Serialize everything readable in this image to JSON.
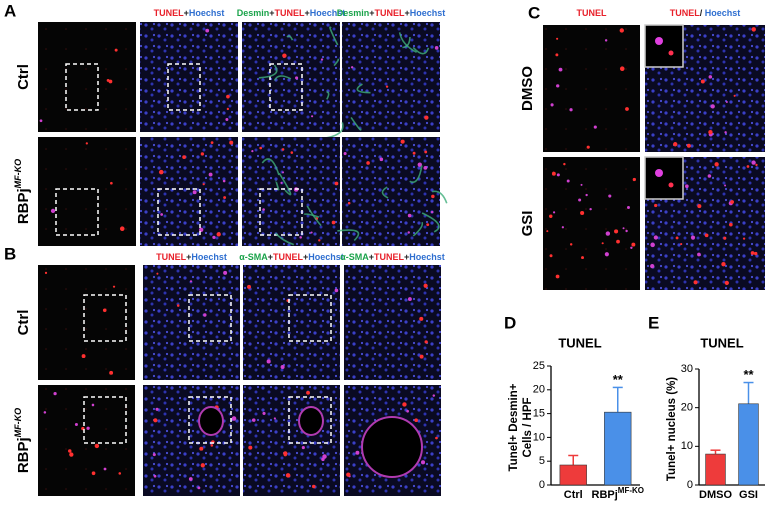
{
  "panel_labels": [
    "A",
    "B",
    "C",
    "D",
    "E"
  ],
  "panel_a": {
    "headers": [
      [
        {
          "text": "TUNEL",
          "color": "#e8202a"
        },
        {
          "text": "+",
          "color": "#222222"
        },
        {
          "text": "Hoechst",
          "color": "#2f6fd0"
        }
      ],
      [
        {
          "text": "Desmin",
          "color": "#1aa34a"
        },
        {
          "text": "+",
          "color": "#222222"
        },
        {
          "text": "TUNEL",
          "color": "#e8202a"
        },
        {
          "text": "+",
          "color": "#222222"
        },
        {
          "text": "Hoechst",
          "color": "#2f6fd0"
        }
      ],
      [
        {
          "text": "Desmin",
          "color": "#1aa34a"
        },
        {
          "text": "+",
          "color": "#222222"
        },
        {
          "text": "TUNEL",
          "color": "#e8202a"
        },
        {
          "text": "+",
          "color": "#222222"
        },
        {
          "text": "Hoechst",
          "color": "#2f6fd0"
        }
      ]
    ],
    "rows": [
      {
        "text": "Ctrl"
      },
      {
        "text": "RBPj",
        "sup": "MF-KO"
      }
    ]
  },
  "panel_b": {
    "headers": [
      [
        {
          "text": "TUNEL",
          "color": "#e8202a"
        },
        {
          "text": "+",
          "color": "#222222"
        },
        {
          "text": "Hoechst",
          "color": "#2f6fd0"
        }
      ],
      [
        {
          "text": "α-SMA",
          "color": "#1aa34a"
        },
        {
          "text": "+",
          "color": "#222222"
        },
        {
          "text": "TUNEL",
          "color": "#e8202a"
        },
        {
          "text": "+",
          "color": "#222222"
        },
        {
          "text": "Hoechst",
          "color": "#2f6fd0"
        }
      ],
      [
        {
          "text": "α-SMA",
          "color": "#1aa34a"
        },
        {
          "text": "+",
          "color": "#222222"
        },
        {
          "text": "TUNEL",
          "color": "#e8202a"
        },
        {
          "text": "+",
          "color": "#222222"
        },
        {
          "text": "Hoechst",
          "color": "#2f6fd0"
        }
      ]
    ],
    "rows": [
      {
        "text": "Ctrl"
      },
      {
        "text": "RBPj",
        "sup": "MF-KO"
      }
    ]
  },
  "panel_c": {
    "headers": [
      [
        {
          "text": "TUNEL",
          "color": "#e8202a"
        }
      ],
      [
        {
          "text": "TUNEL",
          "color": "#e8202a"
        },
        {
          "text": "/ ",
          "color": "#222222"
        },
        {
          "text": "Hoechst",
          "color": "#2f6fd0"
        }
      ]
    ],
    "rows": [
      {
        "text": "DMSO"
      },
      {
        "text": "GSI"
      }
    ]
  },
  "chart_data": [
    {
      "type": "bar",
      "title": "TUNEL",
      "y_label": [
        "Tunel+ Desmin+",
        "Cells / HPF"
      ],
      "categories": [
        {
          "text": "Ctrl"
        },
        {
          "text": "RBPj",
          "sup": "MF-KO"
        }
      ],
      "values": [
        4.2,
        15.3
      ],
      "errors": [
        2.0,
        5.2
      ],
      "colors": [
        "#ee3b3b",
        "#4a90e8"
      ],
      "significance": [
        null,
        "**"
      ],
      "ylim": [
        0,
        25
      ],
      "yticks": [
        0,
        5,
        10,
        15,
        20,
        25
      ]
    },
    {
      "type": "bar",
      "title": "TUNEL",
      "y_label": [
        "Tunel+ nucleus (%)"
      ],
      "categories": [
        {
          "text": "DMSO"
        },
        {
          "text": "GSI"
        }
      ],
      "values": [
        8,
        21
      ],
      "errors": [
        1,
        5.5
      ],
      "colors": [
        "#ee3b3b",
        "#4a90e8"
      ],
      "significance": [
        null,
        "**"
      ],
      "ylim": [
        0,
        30
      ],
      "yticks": [
        0,
        10,
        20,
        30
      ]
    }
  ]
}
